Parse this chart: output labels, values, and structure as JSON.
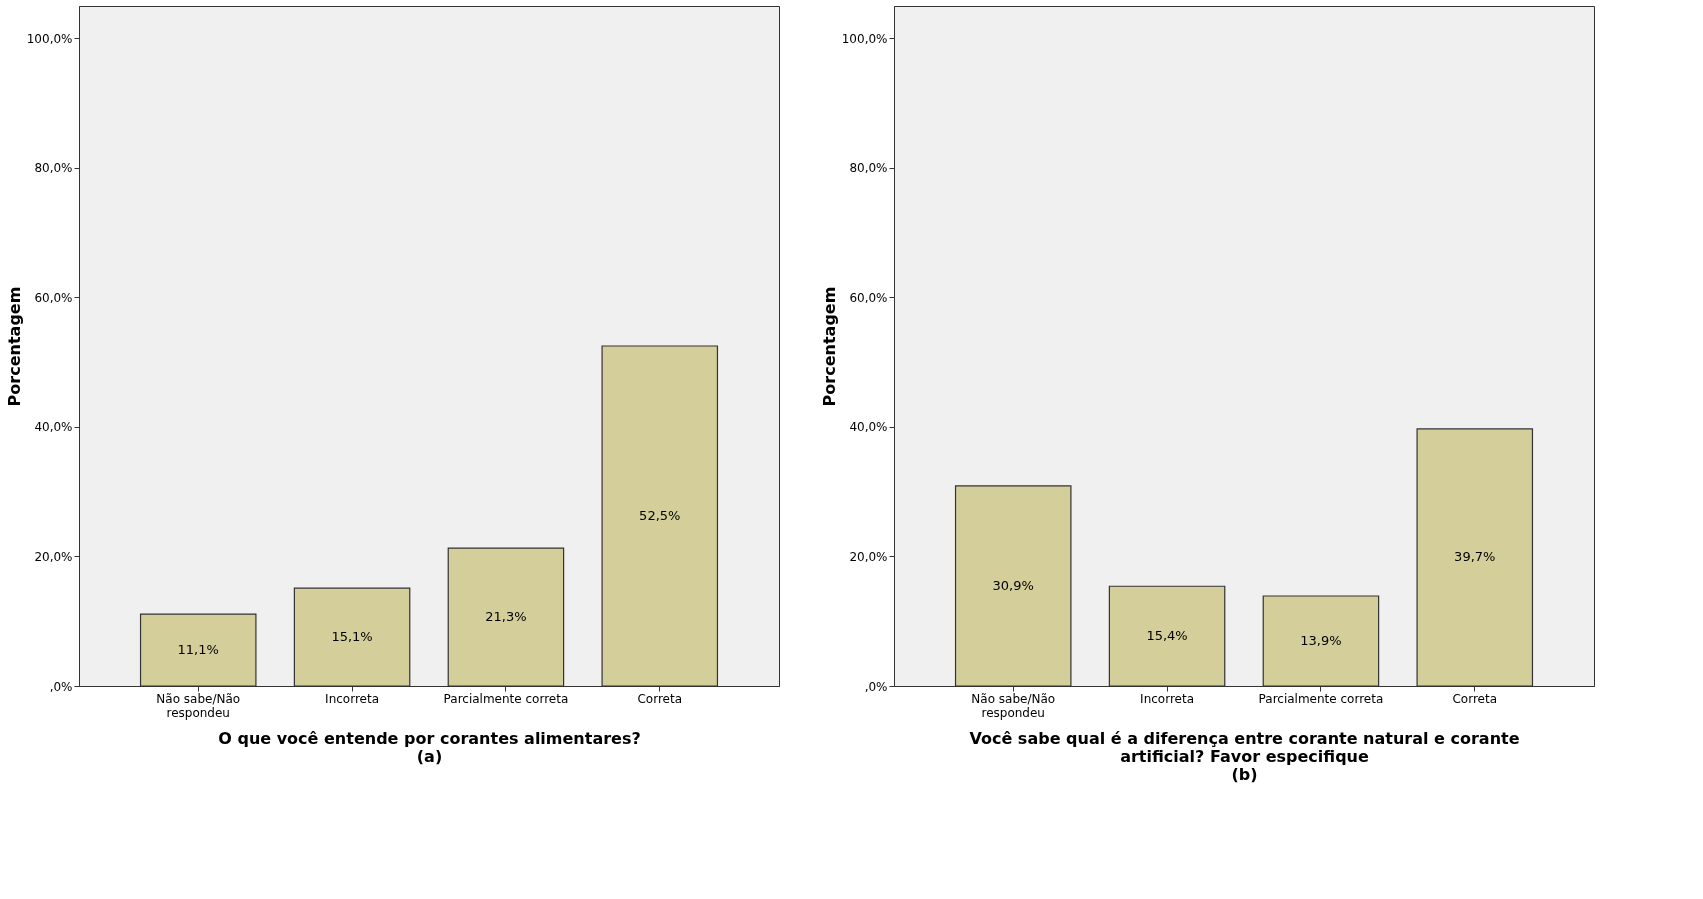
{
  "chart_data": [
    {
      "type": "bar",
      "xlabel": "O que você entende por corantes alimentares?",
      "ylabel": "Porcentagem",
      "annotations": [
        "(a)"
      ],
      "categories": [
        "Não sabe/Não\nrespondeu",
        "Incorreta",
        "Parcialmente correta",
        "Correta"
      ],
      "values": [
        11.1,
        15.1,
        21.3,
        52.5
      ],
      "color": "#d4cf9a",
      "value_labels": [
        "11,1%",
        "15,1%",
        "21,3%",
        "52,5%"
      ],
      "ylim": [
        0,
        105
      ],
      "yticks": [
        {
          "value": 0,
          "label": ",0%"
        },
        {
          "value": 20,
          "label": "20,0%"
        },
        {
          "value": 40,
          "label": "40,0%"
        },
        {
          "value": 60,
          "label": "60,0%"
        },
        {
          "value": 80,
          "label": "80,0%"
        },
        {
          "value": 100,
          "label": "100,0%"
        }
      ],
      "grid": false
    },
    {
      "type": "bar",
      "xlabel": "Você sabe qual é a diferença entre corante natural e corante artificial? Favor especifique",
      "ylabel": "Porcentagem",
      "annotations": [
        "(b)"
      ],
      "categories": [
        "Não sabe/Não\nrespondeu",
        "Incorreta",
        "Parcialmente correta",
        "Correta"
      ],
      "values": [
        30.9,
        15.4,
        13.9,
        39.7
      ],
      "color": "#d4cf9a",
      "value_labels": [
        "30,9%",
        "15,4%",
        "13,9%",
        "39,7%"
      ],
      "ylim": [
        0,
        105
      ],
      "yticks": [
        {
          "value": 0,
          "label": ",0%"
        },
        {
          "value": 20,
          "label": "20,0%"
        },
        {
          "value": 40,
          "label": "40,0%"
        },
        {
          "value": 60,
          "label": "60,0%"
        },
        {
          "value": 80,
          "label": "80,0%"
        },
        {
          "value": 100,
          "label": "100,0%"
        }
      ],
      "grid": false
    }
  ]
}
